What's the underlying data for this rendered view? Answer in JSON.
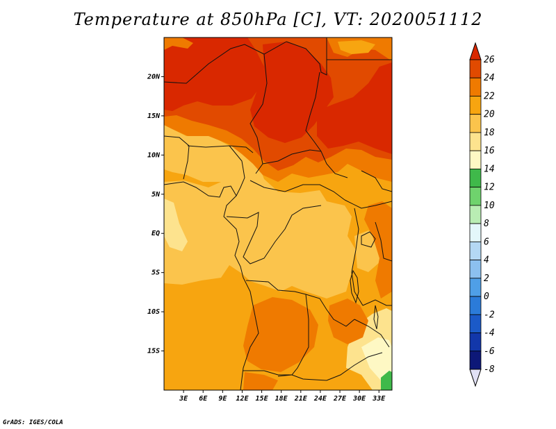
{
  "title": "Temperature at 850hPa [C], VT: 2020051112",
  "credit": "GrADS: IGES/COLA",
  "map": {
    "lon_range": [
      0,
      35
    ],
    "lat_range": [
      -20,
      25
    ],
    "lat_ticks": [
      {
        "value": 20,
        "label": "20N"
      },
      {
        "value": 15,
        "label": "15N"
      },
      {
        "value": 10,
        "label": "10N"
      },
      {
        "value": 5,
        "label": "5N"
      },
      {
        "value": 0,
        "label": "EQ"
      },
      {
        "value": -5,
        "label": "5S"
      },
      {
        "value": -10,
        "label": "10S"
      },
      {
        "value": -15,
        "label": "15S"
      }
    ],
    "lon_ticks": [
      {
        "value": 3,
        "label": "3E"
      },
      {
        "value": 6,
        "label": "6E"
      },
      {
        "value": 9,
        "label": "9E"
      },
      {
        "value": 12,
        "label": "12E"
      },
      {
        "value": 15,
        "label": "15E"
      },
      {
        "value": 18,
        "label": "18E"
      },
      {
        "value": 21,
        "label": "21E"
      },
      {
        "value": 24,
        "label": "24E"
      },
      {
        "value": 27,
        "label": "27E"
      },
      {
        "value": 30,
        "label": "30E"
      },
      {
        "value": 33,
        "label": "33E"
      }
    ]
  },
  "colorbar": {
    "levels": [
      "26",
      "24",
      "22",
      "20",
      "18",
      "16",
      "14",
      "12",
      "10",
      "8",
      "6",
      "4",
      "2",
      "0",
      "-2",
      "-4",
      "-6",
      "-8"
    ],
    "colors": [
      "#d92800",
      "#e14a00",
      "#ef7a00",
      "#f7a510",
      "#fbc44c",
      "#fde38e",
      "#fef8c4",
      "#3fb94a",
      "#6fd36d",
      "#b9edb3",
      "#e4f7fa",
      "#b4d8f4",
      "#8cc0ef",
      "#4f9fe7",
      "#2b7bd9",
      "#1b5ac8",
      "#1237aa",
      "#0d1878",
      "#e1e1f5"
    ]
  },
  "colors": {
    "t26": "#d92800",
    "t24": "#e14a00",
    "t22": "#ef7a00",
    "t20": "#f7a510",
    "t18": "#fbc44c",
    "t16": "#fde38e",
    "t14": "#fef8c4",
    "t12": "#3fb94a"
  }
}
